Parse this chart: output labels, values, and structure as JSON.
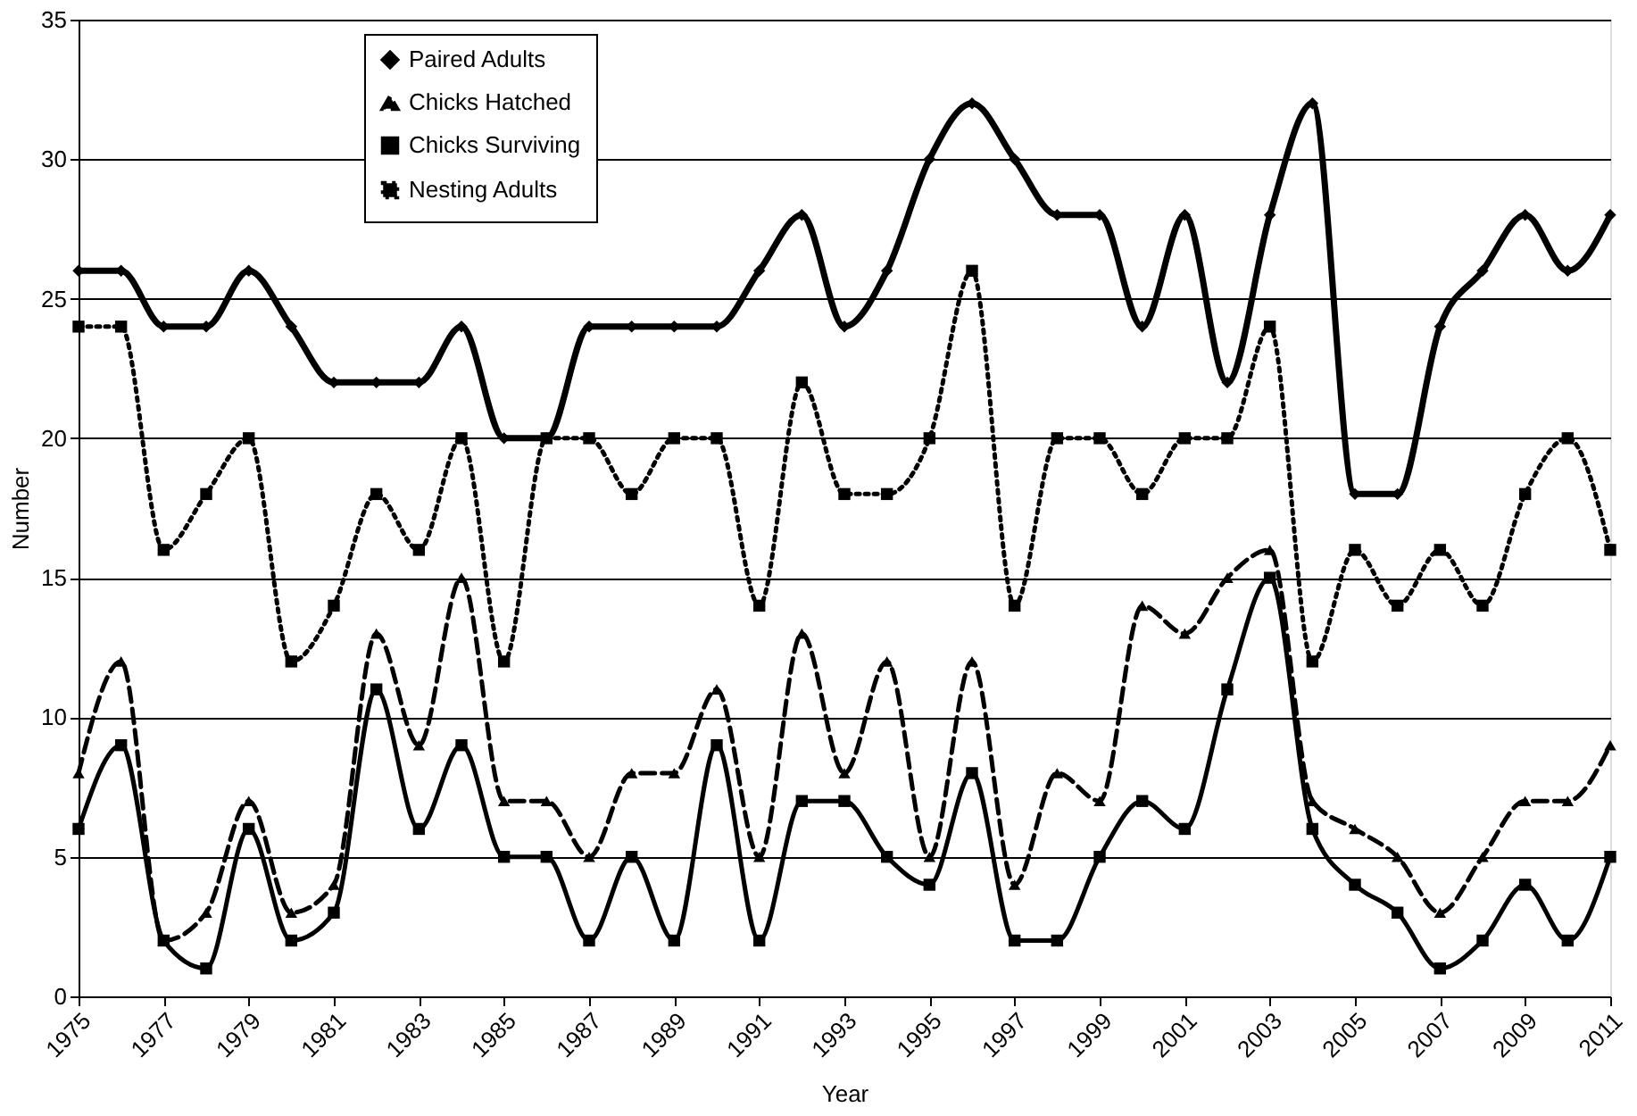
{
  "chart_data": {
    "type": "line",
    "xlabel": "Year",
    "ylabel": "Number",
    "x": [
      1975,
      1976,
      1977,
      1978,
      1979,
      1980,
      1981,
      1982,
      1983,
      1984,
      1985,
      1986,
      1987,
      1988,
      1989,
      1990,
      1991,
      1992,
      1993,
      1994,
      1995,
      1996,
      1997,
      1998,
      1999,
      2000,
      2001,
      2002,
      2003,
      2004,
      2005,
      2006,
      2007,
      2008,
      2009,
      2010,
      2011
    ],
    "xlim": [
      1975,
      2011
    ],
    "xticks": [
      1975,
      1977,
      1979,
      1981,
      1983,
      1985,
      1987,
      1989,
      1991,
      1993,
      1995,
      1997,
      1999,
      2001,
      2003,
      2005,
      2007,
      2009,
      2011
    ],
    "ylim": [
      0,
      35
    ],
    "yticks": [
      0,
      5,
      10,
      15,
      20,
      25,
      30,
      35
    ],
    "grid": "y",
    "legend": "top left",
    "series": [
      {
        "name": "Paired Adults",
        "color": "#000000",
        "marker": "diamond",
        "line_style": "solid",
        "values": [
          26,
          26,
          24,
          24,
          26,
          24,
          22,
          22,
          22,
          24,
          20,
          20,
          24,
          24,
          24,
          24,
          26,
          28,
          24,
          26,
          30,
          32,
          30,
          28,
          28,
          24,
          28,
          22,
          28,
          32,
          18,
          18,
          24,
          26,
          28,
          26,
          28
        ]
      },
      {
        "name": "Chicks Hatched",
        "color": "#000000",
        "marker": "triangle",
        "line_style": "dashed",
        "values": [
          8,
          12,
          2,
          3,
          7,
          3,
          4,
          13,
          9,
          15,
          7,
          7,
          5,
          8,
          8,
          11,
          5,
          13,
          8,
          12,
          5,
          12,
          4,
          8,
          7,
          14,
          13,
          15,
          16,
          7,
          6,
          5,
          3,
          5,
          7,
          7,
          9
        ]
      },
      {
        "name": "Chicks Surviving",
        "color": "#000000",
        "marker": "square",
        "line_style": "solid",
        "values": [
          6,
          9,
          2,
          1,
          6,
          2,
          3,
          11,
          6,
          9,
          5,
          5,
          2,
          5,
          2,
          9,
          2,
          7,
          7,
          5,
          4,
          8,
          2,
          2,
          5,
          7,
          6,
          11,
          15,
          6,
          4,
          3,
          1,
          2,
          4,
          2,
          5
        ]
      },
      {
        "name": "Nesting Adults",
        "color": "#000000",
        "marker": "square",
        "line_style": "dotted",
        "values": [
          24,
          24,
          16,
          18,
          20,
          12,
          14,
          18,
          16,
          20,
          12,
          20,
          20,
          18,
          20,
          20,
          14,
          22,
          18,
          18,
          20,
          26,
          14,
          20,
          20,
          18,
          20,
          20,
          24,
          12,
          16,
          14,
          16,
          14,
          18,
          20,
          16
        ]
      }
    ]
  }
}
